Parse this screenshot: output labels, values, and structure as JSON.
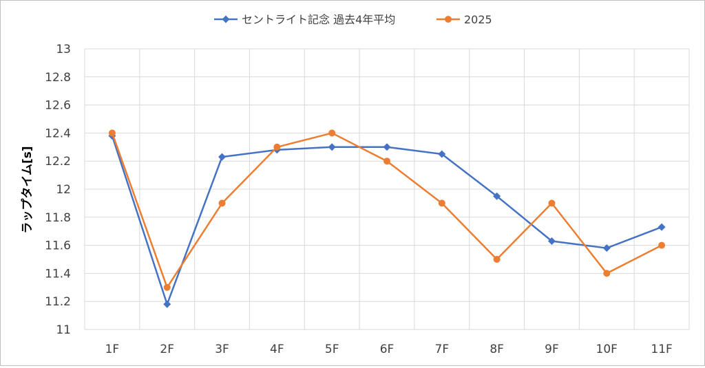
{
  "chart_data": {
    "type": "line",
    "categories": [
      "1F",
      "2F",
      "3F",
      "4F",
      "5F",
      "6F",
      "7F",
      "8F",
      "9F",
      "10F",
      "11F"
    ],
    "series": [
      {
        "name": "セントライト記念 過去4年平均",
        "color": "#4472C4",
        "marker": "diamond",
        "values": [
          12.38,
          11.18,
          12.23,
          12.28,
          12.3,
          12.3,
          12.25,
          11.95,
          11.63,
          11.58,
          11.73
        ]
      },
      {
        "name": "2025",
        "color": "#ED7D31",
        "marker": "circle",
        "values": [
          12.4,
          11.3,
          11.9,
          12.3,
          12.4,
          12.2,
          11.9,
          11.5,
          11.9,
          11.4,
          11.6
        ]
      }
    ],
    "title": "",
    "xlabel": "",
    "ylabel": "ラップタイム[s]",
    "ylim": [
      11,
      13
    ],
    "yticks": [
      "11",
      "11.2",
      "11.4",
      "11.6",
      "11.8",
      "12",
      "12.2",
      "12.4",
      "12.6",
      "12.8",
      "13"
    ],
    "grid": true,
    "legend_position": "top"
  }
}
